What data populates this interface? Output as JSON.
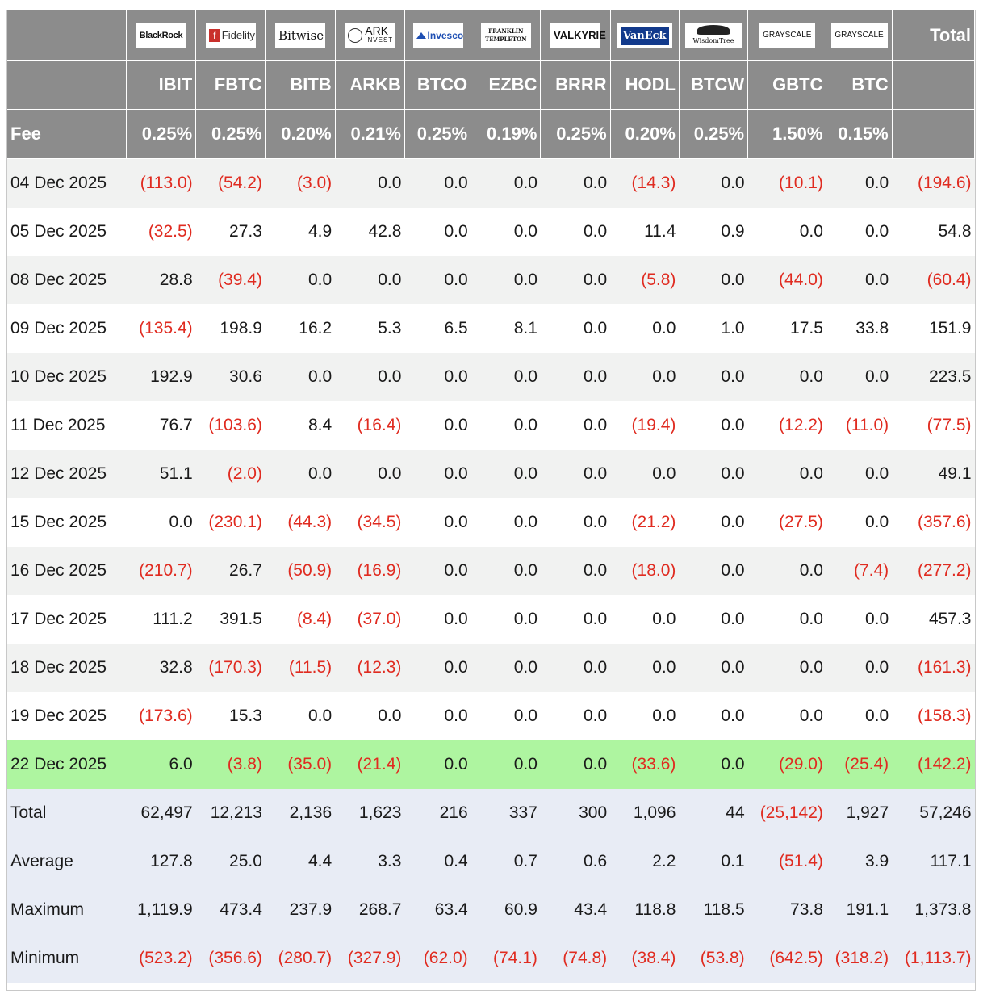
{
  "logos": [
    {
      "brand": "BlackRock",
      "icon": "blackrock-logo"
    },
    {
      "brand": "Fidelity",
      "icon": "fidelity-logo"
    },
    {
      "brand": "Bitwise",
      "icon": "bitwise-logo"
    },
    {
      "brand": "ARK",
      "sub": "INVEST",
      "icon": "ark-logo"
    },
    {
      "brand": "Invesco",
      "icon": "invesco-logo"
    },
    {
      "brand": "FRANKLIN TEMPLETON",
      "icon": "franklin-templeton-logo"
    },
    {
      "brand": "VALKYRIE",
      "icon": "valkyrie-logo"
    },
    {
      "brand": "VanEck",
      "icon": "vaneck-logo"
    },
    {
      "brand": "WisdomTree",
      "icon": "wisdomtree-logo"
    },
    {
      "brand": "GRAYSCALE",
      "icon": "grayscale-logo"
    },
    {
      "brand": "GRAYSCALE",
      "icon": "grayscale-logo"
    }
  ],
  "header": {
    "total_label": "Total",
    "fee_label": "Fee",
    "tickers": [
      "IBIT",
      "FBTC",
      "BITB",
      "ARKB",
      "BTCO",
      "EZBC",
      "BRRR",
      "HODL",
      "BTCW",
      "GBTC",
      "BTC"
    ],
    "fees": [
      "0.25%",
      "0.25%",
      "0.20%",
      "0.21%",
      "0.25%",
      "0.19%",
      "0.25%",
      "0.20%",
      "0.25%",
      "1.50%",
      "0.15%"
    ]
  },
  "rows": [
    {
      "date": "04 Dec 2025",
      "values": [
        "(113.0)",
        "(54.2)",
        "(3.0)",
        "0.0",
        "0.0",
        "0.0",
        "0.0",
        "(14.3)",
        "0.0",
        "(10.1)",
        "0.0",
        "(194.6)"
      ]
    },
    {
      "date": "05 Dec 2025",
      "values": [
        "(32.5)",
        "27.3",
        "4.9",
        "42.8",
        "0.0",
        "0.0",
        "0.0",
        "11.4",
        "0.9",
        "0.0",
        "0.0",
        "54.8"
      ]
    },
    {
      "date": "08 Dec 2025",
      "values": [
        "28.8",
        "(39.4)",
        "0.0",
        "0.0",
        "0.0",
        "0.0",
        "0.0",
        "(5.8)",
        "0.0",
        "(44.0)",
        "0.0",
        "(60.4)"
      ]
    },
    {
      "date": "09 Dec 2025",
      "values": [
        "(135.4)",
        "198.9",
        "16.2",
        "5.3",
        "6.5",
        "8.1",
        "0.0",
        "0.0",
        "1.0",
        "17.5",
        "33.8",
        "151.9"
      ]
    },
    {
      "date": "10 Dec 2025",
      "values": [
        "192.9",
        "30.6",
        "0.0",
        "0.0",
        "0.0",
        "0.0",
        "0.0",
        "0.0",
        "0.0",
        "0.0",
        "0.0",
        "223.5"
      ]
    },
    {
      "date": "11 Dec 2025",
      "values": [
        "76.7",
        "(103.6)",
        "8.4",
        "(16.4)",
        "0.0",
        "0.0",
        "0.0",
        "(19.4)",
        "0.0",
        "(12.2)",
        "(11.0)",
        "(77.5)"
      ]
    },
    {
      "date": "12 Dec 2025",
      "values": [
        "51.1",
        "(2.0)",
        "0.0",
        "0.0",
        "0.0",
        "0.0",
        "0.0",
        "0.0",
        "0.0",
        "0.0",
        "0.0",
        "49.1"
      ]
    },
    {
      "date": "15 Dec 2025",
      "values": [
        "0.0",
        "(230.1)",
        "(44.3)",
        "(34.5)",
        "0.0",
        "0.0",
        "0.0",
        "(21.2)",
        "0.0",
        "(27.5)",
        "0.0",
        "(357.6)"
      ]
    },
    {
      "date": "16 Dec 2025",
      "values": [
        "(210.7)",
        "26.7",
        "(50.9)",
        "(16.9)",
        "0.0",
        "0.0",
        "0.0",
        "(18.0)",
        "0.0",
        "0.0",
        "(7.4)",
        "(277.2)"
      ]
    },
    {
      "date": "17 Dec 2025",
      "values": [
        "111.2",
        "391.5",
        "(8.4)",
        "(37.0)",
        "0.0",
        "0.0",
        "0.0",
        "0.0",
        "0.0",
        "0.0",
        "0.0",
        "457.3"
      ]
    },
    {
      "date": "18 Dec 2025",
      "values": [
        "32.8",
        "(170.3)",
        "(11.5)",
        "(12.3)",
        "0.0",
        "0.0",
        "0.0",
        "0.0",
        "0.0",
        "0.0",
        "0.0",
        "(161.3)"
      ]
    },
    {
      "date": "19 Dec 2025",
      "values": [
        "(173.6)",
        "15.3",
        "0.0",
        "0.0",
        "0.0",
        "0.0",
        "0.0",
        "0.0",
        "0.0",
        "0.0",
        "0.0",
        "(158.3)"
      ]
    },
    {
      "date": "22 Dec 2025",
      "highlight": true,
      "values": [
        "6.0",
        "(3.8)",
        "(35.0)",
        "(21.4)",
        "0.0",
        "0.0",
        "0.0",
        "(33.6)",
        "0.0",
        "(29.0)",
        "(25.4)",
        "(142.2)"
      ]
    }
  ],
  "summary": [
    {
      "label": "Total",
      "values": [
        "62,497",
        "12,213",
        "2,136",
        "1,623",
        "216",
        "337",
        "300",
        "1,096",
        "44",
        "(25,142)",
        "1,927",
        "57,246"
      ]
    },
    {
      "label": "Average",
      "values": [
        "127.8",
        "25.0",
        "4.4",
        "3.3",
        "0.4",
        "0.7",
        "0.6",
        "2.2",
        "0.1",
        "(51.4)",
        "3.9",
        "117.1"
      ]
    },
    {
      "label": "Maximum",
      "values": [
        "1,119.9",
        "473.4",
        "237.9",
        "268.7",
        "63.4",
        "60.9",
        "43.4",
        "118.8",
        "118.5",
        "73.8",
        "191.1",
        "1,373.8"
      ]
    },
    {
      "label": "Minimum",
      "values": [
        "(523.2)",
        "(356.6)",
        "(280.7)",
        "(327.9)",
        "(62.0)",
        "(74.1)",
        "(74.8)",
        "(38.4)",
        "(53.8)",
        "(642.5)",
        "(318.2)",
        "(1,113.7)"
      ]
    }
  ],
  "colors": {
    "negative": "#e02b20",
    "header_bg": "#8c8c8c",
    "highlight_bg": "#aef5a0",
    "summary_bg": "#e8ecf5",
    "stripe_bg": "#f1f2f1"
  }
}
